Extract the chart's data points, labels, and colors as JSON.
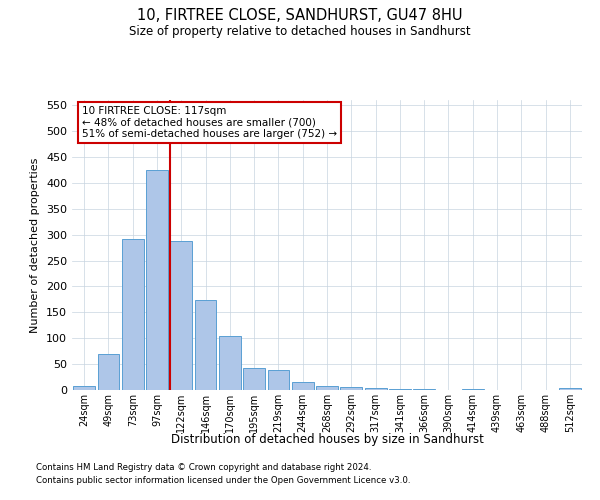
{
  "title": "10, FIRTREE CLOSE, SANDHURST, GU47 8HU",
  "subtitle": "Size of property relative to detached houses in Sandhurst",
  "xlabel": "Distribution of detached houses by size in Sandhurst",
  "ylabel": "Number of detached properties",
  "categories": [
    "24sqm",
    "49sqm",
    "73sqm",
    "97sqm",
    "122sqm",
    "146sqm",
    "170sqm",
    "195sqm",
    "219sqm",
    "244sqm",
    "268sqm",
    "292sqm",
    "317sqm",
    "341sqm",
    "366sqm",
    "390sqm",
    "414sqm",
    "439sqm",
    "463sqm",
    "488sqm",
    "512sqm"
  ],
  "values": [
    8,
    70,
    291,
    425,
    287,
    174,
    104,
    43,
    38,
    16,
    8,
    6,
    3,
    1,
    1,
    0,
    2,
    0,
    0,
    0,
    3
  ],
  "bar_color": "#aec6e8",
  "bar_edge_color": "#5a9fd4",
  "vline_index": 4,
  "vline_color": "#cc0000",
  "annotation_text": "10 FIRTREE CLOSE: 117sqm\n← 48% of detached houses are smaller (700)\n51% of semi-detached houses are larger (752) →",
  "annotation_box_color": "#ffffff",
  "annotation_box_edge": "#cc0000",
  "ylim": [
    0,
    560
  ],
  "yticks": [
    0,
    50,
    100,
    150,
    200,
    250,
    300,
    350,
    400,
    450,
    500,
    550
  ],
  "footer1": "Contains HM Land Registry data © Crown copyright and database right 2024.",
  "footer2": "Contains public sector information licensed under the Open Government Licence v3.0.",
  "bg_color": "#ffffff",
  "grid_color": "#c8d4e0"
}
